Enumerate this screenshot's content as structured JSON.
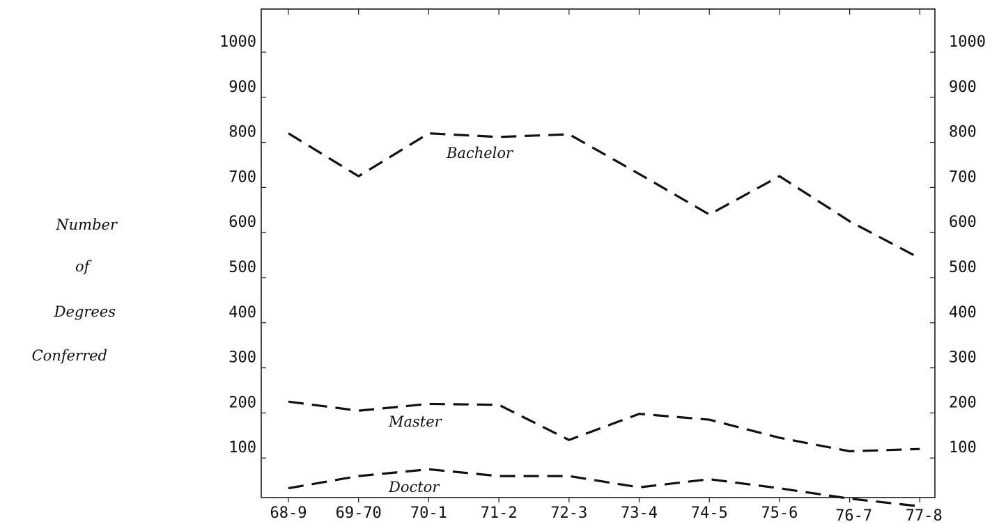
{
  "chart_data": {
    "type": "line",
    "categories": [
      "68-9",
      "69-70",
      "70-1",
      "71-2",
      "72-3",
      "73-4",
      "74-5",
      "75-6",
      "76-7",
      "77-8"
    ],
    "series": [
      {
        "name": "Bachelor",
        "values": [
          820,
          725,
          820,
          812,
          818,
          730,
          640,
          725,
          625,
          543
        ]
      },
      {
        "name": "Master",
        "values": [
          225,
          205,
          220,
          218,
          140,
          198,
          185,
          145,
          115,
          120
        ]
      },
      {
        "name": "Doctor",
        "values": [
          33,
          60,
          75,
          60,
          60,
          35,
          53,
          33,
          10,
          -7
        ]
      }
    ],
    "title": "",
    "xlabel": "",
    "ylabel_lines": [
      "Number",
      "of",
      "Degrees",
      "Conferred"
    ],
    "ylim": [
      -20,
      1080
    ],
    "yticks": [
      100,
      200,
      300,
      400,
      500,
      600,
      700,
      800,
      900,
      1000
    ],
    "ytick_labels": [
      "100",
      "200",
      "300",
      "400",
      "500",
      "600",
      "700",
      "800",
      "900",
      "1000"
    ],
    "grid": false,
    "legend": "none (series labeled inline)"
  }
}
